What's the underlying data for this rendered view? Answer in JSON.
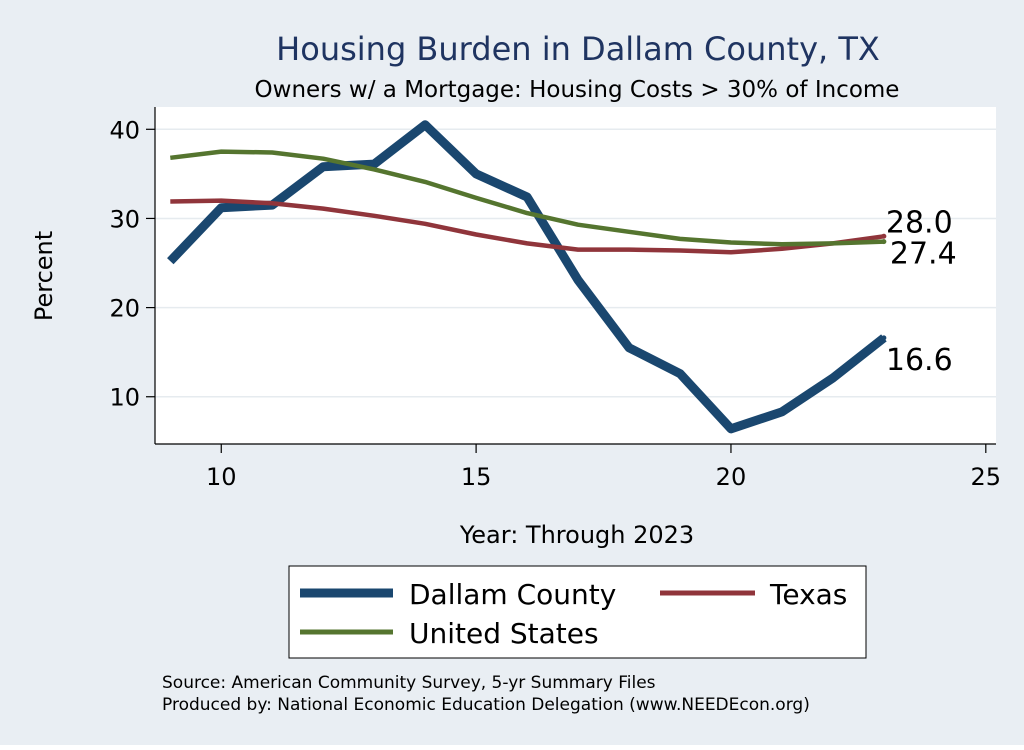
{
  "chart_data": {
    "type": "line",
    "title": "Housing Burden in Dallam County, TX",
    "subtitle": "Owners w/ a Mortgage: Housing Costs > 30% of Income",
    "xlabel": "Year: Through 2023",
    "ylabel": "Percent",
    "xlim": [
      8.7,
      25.2
    ],
    "ylim": [
      4.7,
      42.5
    ],
    "xticks": [
      10,
      15,
      20,
      25
    ],
    "yticks": [
      10,
      20,
      30,
      40
    ],
    "grid": true,
    "legend_position": "bottom",
    "series": [
      {
        "name": "Dallam County",
        "color": "#1a476f",
        "x": [
          9,
          10,
          11,
          12,
          13,
          14,
          15,
          16,
          17,
          18,
          19,
          20,
          21,
          22,
          23
        ],
        "y": [
          25.2,
          31.2,
          31.5,
          35.8,
          36.1,
          40.5,
          35.0,
          32.4,
          23.1,
          15.5,
          12.6,
          6.4,
          8.3,
          12.1,
          16.6
        ],
        "end_label": "16.6"
      },
      {
        "name": "Texas",
        "color": "#90353b",
        "x": [
          9,
          10,
          11,
          12,
          13,
          14,
          15,
          16,
          17,
          18,
          19,
          20,
          21,
          22,
          23
        ],
        "y": [
          31.9,
          32.0,
          31.7,
          31.1,
          30.3,
          29.4,
          28.2,
          27.2,
          26.5,
          26.5,
          26.4,
          26.2,
          26.6,
          27.2,
          28.0
        ],
        "end_label": "28.0"
      },
      {
        "name": "United States",
        "color": "#55752f",
        "x": [
          9,
          10,
          11,
          12,
          13,
          14,
          15,
          16,
          17,
          18,
          19,
          20,
          21,
          22,
          23
        ],
        "y": [
          36.8,
          37.5,
          37.4,
          36.7,
          35.5,
          34.1,
          32.3,
          30.6,
          29.3,
          28.5,
          27.7,
          27.3,
          27.1,
          27.2,
          27.4
        ],
        "end_label": "27.4"
      }
    ],
    "source_lines": [
      "Source: American Community Survey, 5-yr Summary Files",
      "Produced by: National Economic Education Delegation (www.NEEDEcon.org)"
    ]
  }
}
